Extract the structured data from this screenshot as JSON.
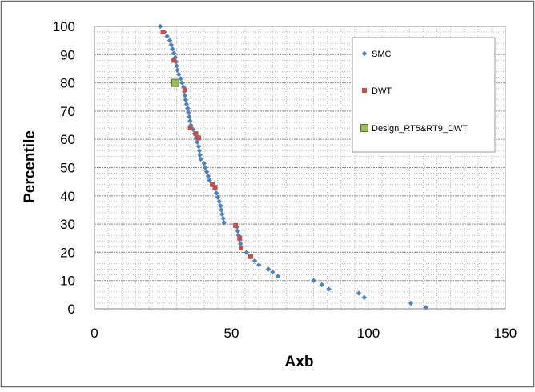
{
  "chart_data": {
    "type": "scatter",
    "xlabel": "Axb",
    "ylabel": "Percentile",
    "xlim": [
      0,
      150
    ],
    "ylim": [
      0,
      100
    ],
    "x_ticks": [
      "0",
      "50",
      "100",
      "150"
    ],
    "y_ticks": [
      "0",
      "10",
      "20",
      "30",
      "40",
      "50",
      "60",
      "70",
      "80",
      "90",
      "100"
    ],
    "grid": {
      "horizontal_major": true,
      "horizontal_minor": true,
      "vertical_minor": true,
      "x_minor_step": 5,
      "y_minor_step": 2
    },
    "legend_position": "top-right",
    "series": [
      {
        "name": "SMC",
        "marker": "diamond",
        "color": "#4f81bd",
        "points": [
          [
            24.0,
            100
          ],
          [
            25.5,
            98
          ],
          [
            26.5,
            96.5
          ],
          [
            27.5,
            95
          ],
          [
            28.0,
            93.5
          ],
          [
            28.5,
            92
          ],
          [
            29.0,
            90.5
          ],
          [
            29.5,
            89
          ],
          [
            29.8,
            87.5
          ],
          [
            30.0,
            86
          ],
          [
            30.3,
            84.5
          ],
          [
            30.8,
            83
          ],
          [
            31.5,
            81.5
          ],
          [
            32.0,
            80
          ],
          [
            32.5,
            78.5
          ],
          [
            32.8,
            77
          ],
          [
            33.0,
            75.5
          ],
          [
            33.3,
            74
          ],
          [
            33.6,
            72.5
          ],
          [
            34.0,
            71
          ],
          [
            34.3,
            69.5
          ],
          [
            34.6,
            68
          ],
          [
            34.9,
            66.5
          ],
          [
            35.2,
            65
          ],
          [
            36.0,
            63.5
          ],
          [
            36.5,
            62
          ],
          [
            37.0,
            60.5
          ],
          [
            37.5,
            59
          ],
          [
            38.0,
            57.5
          ],
          [
            38.3,
            56
          ],
          [
            38.5,
            54.5
          ],
          [
            38.8,
            53
          ],
          [
            40.0,
            51.5
          ],
          [
            40.5,
            50
          ],
          [
            41.0,
            48.5
          ],
          [
            41.5,
            47
          ],
          [
            42.0,
            45.5
          ],
          [
            43.0,
            44
          ],
          [
            44.0,
            42.5
          ],
          [
            44.5,
            41
          ],
          [
            45.0,
            39.5
          ],
          [
            45.5,
            38
          ],
          [
            46.0,
            36.5
          ],
          [
            46.3,
            35
          ],
          [
            46.6,
            33.5
          ],
          [
            47.0,
            32
          ],
          [
            47.3,
            30.5
          ],
          [
            52.0,
            29
          ],
          [
            52.3,
            27.5
          ],
          [
            52.6,
            26
          ],
          [
            53.0,
            24.5
          ],
          [
            53.3,
            23
          ],
          [
            53.6,
            21.5
          ],
          [
            55.5,
            20
          ],
          [
            57.0,
            18.5
          ],
          [
            58.5,
            17
          ],
          [
            60.0,
            15.5
          ],
          [
            63.5,
            14
          ],
          [
            65.0,
            13
          ],
          [
            67.0,
            11.5
          ],
          [
            80.0,
            10
          ],
          [
            83.0,
            8.5
          ],
          [
            85.5,
            7
          ],
          [
            96.5,
            5.5
          ],
          [
            98.5,
            4
          ],
          [
            115.5,
            2
          ],
          [
            121.0,
            0.5
          ]
        ]
      },
      {
        "name": "DWT",
        "marker": "square",
        "color": "#c0504d",
        "points": [
          [
            25.0,
            98
          ],
          [
            29.0,
            88
          ],
          [
            33.0,
            77.5
          ],
          [
            35.0,
            64
          ],
          [
            37.0,
            62
          ],
          [
            38.0,
            60.5
          ],
          [
            43.0,
            44
          ],
          [
            44.0,
            43
          ],
          [
            51.5,
            29.5
          ],
          [
            53.0,
            25
          ],
          [
            53.5,
            21.5
          ],
          [
            57.0,
            18.5
          ]
        ]
      },
      {
        "name": "Design_RT5&RT9_DWT",
        "marker": "square-large",
        "color": "#9bbb59",
        "points": [
          [
            29.5,
            80
          ]
        ]
      }
    ]
  }
}
